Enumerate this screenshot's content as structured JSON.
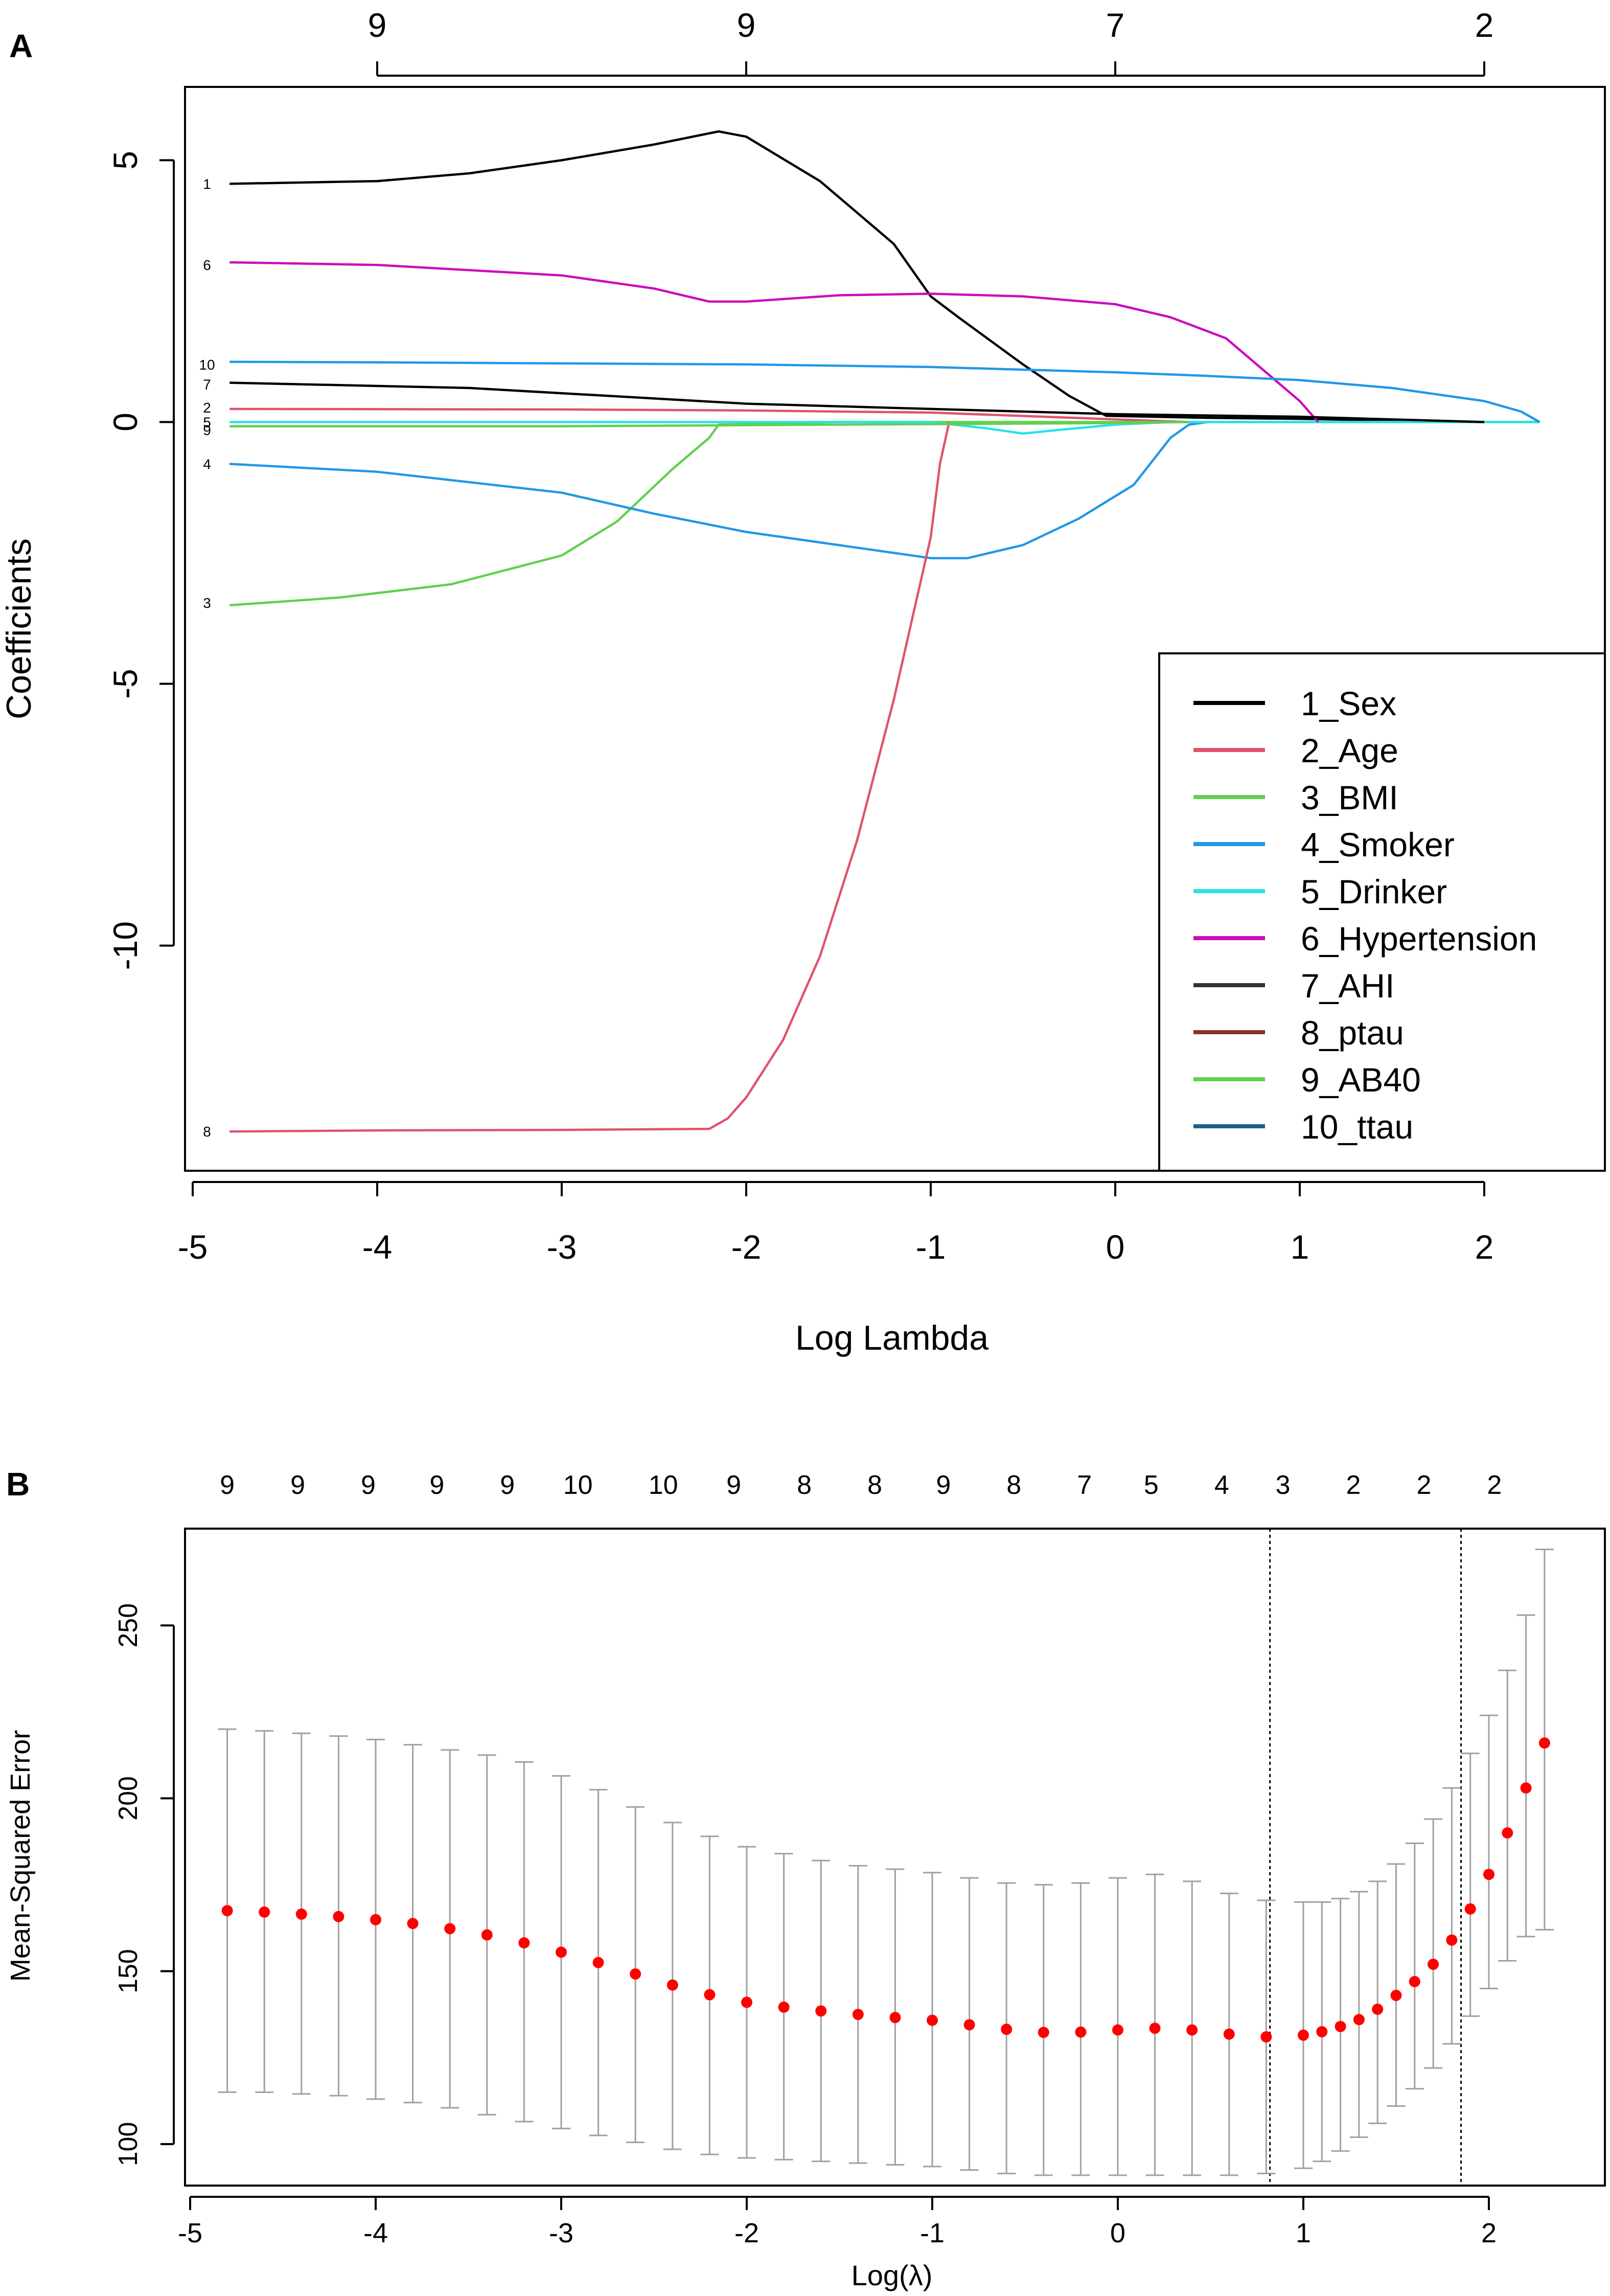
{
  "chart_data": [
    {
      "panel_label": "A",
      "type": "line",
      "xlabel": "Log Lambda",
      "ylabel": "Coefficients",
      "xlim": [
        -5,
        2.4
      ],
      "ylim": [
        -14.3,
        6.4
      ],
      "x_ticks": [
        "-5",
        "-4",
        "-3",
        "-2",
        "-1",
        "0",
        "1",
        "2"
      ],
      "x_tick_values": [
        -5,
        -4,
        -3,
        -2,
        -1,
        0,
        1,
        2
      ],
      "y_ticks": [
        "-10",
        "-5",
        "0",
        "5"
      ],
      "y_tick_values": [
        -10,
        -5,
        0,
        5
      ],
      "top_axis": [
        {
          "x": -4,
          "label": "9"
        },
        {
          "x": -2,
          "label": "9"
        },
        {
          "x": 0,
          "label": "7"
        },
        {
          "x": 2,
          "label": "2"
        }
      ],
      "legend_position": "bottom-right",
      "series": [
        {
          "id": "1",
          "name": "1_Sex",
          "color": "#000000",
          "x": [
            -4.8,
            -4.0,
            -3.5,
            -3.0,
            -2.5,
            -2.15,
            -2.0,
            -1.6,
            -1.2,
            -1.0,
            -0.85,
            -0.5,
            -0.25,
            -0.05,
            0.5,
            1.0,
            2.0
          ],
          "y": [
            4.55,
            4.6,
            4.75,
            5.0,
            5.3,
            5.55,
            5.45,
            4.6,
            3.4,
            2.4,
            2.0,
            1.1,
            0.5,
            0.12,
            0.08,
            0.06,
            0.0
          ]
        },
        {
          "id": "2",
          "name": "2_Age",
          "color": "#df536b",
          "x": [
            -4.8,
            -3.0,
            -2.0,
            -1.0,
            0.0,
            0.4
          ],
          "y": [
            0.25,
            0.24,
            0.22,
            0.18,
            0.05,
            0.0
          ]
        },
        {
          "id": "3",
          "name": "3_BMI",
          "color": "#61d04f",
          "x": [
            -4.8,
            -4.2,
            -3.6,
            -3.0,
            -2.7,
            -2.4,
            -2.2,
            -2.15,
            -1.5,
            0.0,
            2.3
          ],
          "y": [
            -3.5,
            -3.35,
            -3.1,
            -2.55,
            -1.9,
            -0.9,
            -0.3,
            -0.05,
            0.0,
            0.0,
            0.0
          ]
        },
        {
          "id": "4",
          "name": "4_Smoker",
          "color": "#2297e6",
          "x": [
            -4.8,
            -4.0,
            -3.0,
            -2.5,
            -2.0,
            -1.5,
            -1.0,
            -0.8,
            -0.5,
            -0.2,
            0.1,
            0.3,
            0.4,
            0.5
          ],
          "y": [
            -0.8,
            -0.95,
            -1.35,
            -1.75,
            -2.1,
            -2.35,
            -2.6,
            -2.6,
            -2.35,
            -1.85,
            -1.2,
            -0.3,
            -0.05,
            0.0
          ]
        },
        {
          "id": "5",
          "name": "5_Drinker",
          "color": "#28e2e5",
          "x": [
            -4.8,
            -1.0,
            -0.7,
            -0.5,
            -0.3,
            0.0,
            0.3,
            2.3
          ],
          "y": [
            0.0,
            0.0,
            -0.12,
            -0.22,
            -0.15,
            -0.05,
            0.0,
            0.0
          ]
        },
        {
          "id": "6",
          "name": "6_Hypertension",
          "color": "#cd0bbc",
          "x": [
            -4.8,
            -4.0,
            -3.0,
            -2.5,
            -2.2,
            -2.0,
            -1.5,
            -1.0,
            -0.5,
            0.0,
            0.3,
            0.6,
            0.8,
            1.0,
            1.1
          ],
          "y": [
            3.05,
            3.0,
            2.8,
            2.55,
            2.3,
            2.3,
            2.42,
            2.45,
            2.4,
            2.25,
            2.0,
            1.6,
            1.0,
            0.4,
            0.0
          ]
        },
        {
          "id": "7",
          "name": "7_AHI",
          "color": "#000000",
          "x": [
            -4.8,
            -3.5,
            -2.5,
            -2.0,
            -1.0,
            0.0,
            1.0,
            2.0
          ],
          "y": [
            0.75,
            0.65,
            0.45,
            0.35,
            0.25,
            0.15,
            0.1,
            0.0
          ]
        },
        {
          "id": "8",
          "name": "8_ptau",
          "color": "#df536b",
          "x": [
            -4.8,
            -4.0,
            -3.0,
            -2.2,
            -2.1,
            -2.0,
            -1.8,
            -1.6,
            -1.4,
            -1.2,
            -1.0,
            -0.95,
            -0.9
          ],
          "y": [
            -13.55,
            -13.53,
            -13.52,
            -13.5,
            -13.3,
            -12.9,
            -11.8,
            -10.2,
            -8.0,
            -5.3,
            -2.2,
            -0.8,
            0.0
          ]
        },
        {
          "id": "9",
          "name": "9_AB40",
          "color": "#61d04f",
          "x": [
            -4.8,
            -3.0,
            -2.0,
            -1.0,
            0.0,
            0.4
          ],
          "y": [
            -0.08,
            -0.08,
            -0.06,
            -0.04,
            -0.02,
            0.0
          ]
        },
        {
          "id": "10",
          "name": "10_ttau",
          "color": "#2297e6",
          "x": [
            -4.8,
            -4.0,
            -3.0,
            -2.0,
            -1.0,
            0.0,
            0.5,
            1.0,
            1.5,
            2.0,
            2.2,
            2.3
          ],
          "y": [
            1.15,
            1.14,
            1.12,
            1.1,
            1.05,
            0.95,
            0.88,
            0.8,
            0.65,
            0.4,
            0.2,
            0.0
          ]
        }
      ],
      "legend": [
        {
          "label": "1_Sex",
          "color": "#000000"
        },
        {
          "label": "2_Age",
          "color": "#df536b"
        },
        {
          "label": "3_BMI",
          "color": "#61d04f"
        },
        {
          "label": "4_Smoker",
          "color": "#2297e6"
        },
        {
          "label": "5_Drinker",
          "color": "#28e2e5"
        },
        {
          "label": "6_Hypertension",
          "color": "#cd0bbc"
        },
        {
          "label": "7_AHI",
          "color": "#333333"
        },
        {
          "label": "8_ptau",
          "color": "#8b2e2e"
        },
        {
          "label": "9_AB40",
          "color": "#61d04f"
        },
        {
          "label": "10_ttau",
          "color": "#1f5f8b"
        }
      ],
      "line_labels": [
        {
          "label": "1",
          "y": 4.55
        },
        {
          "label": "6",
          "y": 3.0
        },
        {
          "label": "10",
          "y": 1.1
        },
        {
          "label": "7",
          "y": 0.72
        },
        {
          "label": "2",
          "y": 0.28
        },
        {
          "label": "5",
          "y": 0.0
        },
        {
          "label": "9",
          "y": -0.15
        },
        {
          "label": "4",
          "y": -0.8
        },
        {
          "label": "3",
          "y": -3.45
        },
        {
          "label": "8",
          "y": -13.55
        }
      ]
    },
    {
      "panel_label": "B",
      "type": "scatter",
      "xlabel": "Log(λ)",
      "ylabel": "Mean-Squared Error",
      "xlim": [
        -5,
        2.5
      ],
      "ylim": [
        88,
        278
      ],
      "x_ticks": [
        "-5",
        "-4",
        "-3",
        "-2",
        "-1",
        "0",
        "1",
        "2"
      ],
      "x_tick_values": [
        -5,
        -4,
        -3,
        -2,
        -1,
        0,
        1,
        2
      ],
      "y_ticks": [
        "100",
        "150",
        "200",
        "250"
      ],
      "y_tick_values": [
        100,
        150,
        200,
        250
      ],
      "top_axis_labels": [
        "9",
        "9",
        "9",
        "9",
        "9",
        "10",
        "10",
        "9",
        "8",
        "8",
        "9",
        "8",
        "7",
        "5",
        "4",
        "3",
        "2",
        "2",
        "2"
      ],
      "top_axis_values": [
        -4.8,
        -4.42,
        -4.04,
        -3.67,
        -3.29,
        -2.91,
        -2.45,
        -2.07,
        -1.69,
        -1.31,
        -0.94,
        -0.56,
        -0.18,
        0.18,
        0.56,
        0.89,
        1.27,
        1.65,
        2.03
      ],
      "vlines": [
        0.82,
        1.85
      ],
      "point_color": "#ff0000",
      "errorbar_color": "#a0a0a0",
      "points": {
        "x": [
          -4.8,
          -4.6,
          -4.4,
          -4.2,
          -4.0,
          -3.8,
          -3.6,
          -3.4,
          -3.2,
          -3.0,
          -2.8,
          -2.6,
          -2.4,
          -2.2,
          -2.0,
          -1.8,
          -1.6,
          -1.4,
          -1.2,
          -1.0,
          -0.8,
          -0.6,
          -0.4,
          -0.2,
          0.0,
          0.2,
          0.4,
          0.6,
          0.8,
          1.0,
          1.1,
          1.2,
          1.3,
          1.4,
          1.5,
          1.6,
          1.7,
          1.8,
          1.9,
          2.0,
          2.1,
          2.2,
          2.3
        ],
        "mse": [
          167.5,
          167.1,
          166.5,
          165.8,
          164.9,
          163.8,
          162.3,
          160.5,
          158.2,
          155.5,
          152.5,
          149.2,
          146.0,
          143.2,
          141.0,
          139.6,
          138.5,
          137.5,
          136.6,
          135.8,
          134.5,
          133.2,
          132.3,
          132.4,
          133.0,
          133.5,
          133.0,
          131.8,
          131.0,
          131.5,
          132.5,
          134.0,
          136.0,
          139.0,
          143.0,
          147.0,
          152.0,
          159.0,
          168.0,
          178.0,
          190.0,
          203.0,
          216.0
        ],
        "lower": [
          115.0,
          115.0,
          114.5,
          114.0,
          113.0,
          112.0,
          110.5,
          108.5,
          106.5,
          104.5,
          102.5,
          100.5,
          98.5,
          97.0,
          96.0,
          95.5,
          95.0,
          94.5,
          94.0,
          93.5,
          92.5,
          91.5,
          91.0,
          91.0,
          91.0,
          91.0,
          91.0,
          91.0,
          91.5,
          93.0,
          95.0,
          98.0,
          102.0,
          106.0,
          111.0,
          116.0,
          122.0,
          129.0,
          137.0,
          145.0,
          153.0,
          160.0,
          162.0
        ],
        "upper": [
          220.0,
          219.5,
          218.8,
          218.0,
          217.0,
          215.5,
          214.0,
          212.5,
          210.5,
          206.5,
          202.5,
          197.5,
          193.0,
          189.0,
          186.0,
          184.0,
          182.0,
          180.5,
          179.5,
          178.5,
          177.0,
          175.5,
          175.0,
          175.5,
          177.0,
          178.0,
          176.0,
          172.5,
          170.5,
          170.0,
          170.0,
          171.0,
          173.0,
          176.0,
          181.0,
          187.0,
          194.0,
          203.0,
          213.0,
          224.0,
          237.0,
          253.0,
          272.0
        ]
      }
    }
  ]
}
